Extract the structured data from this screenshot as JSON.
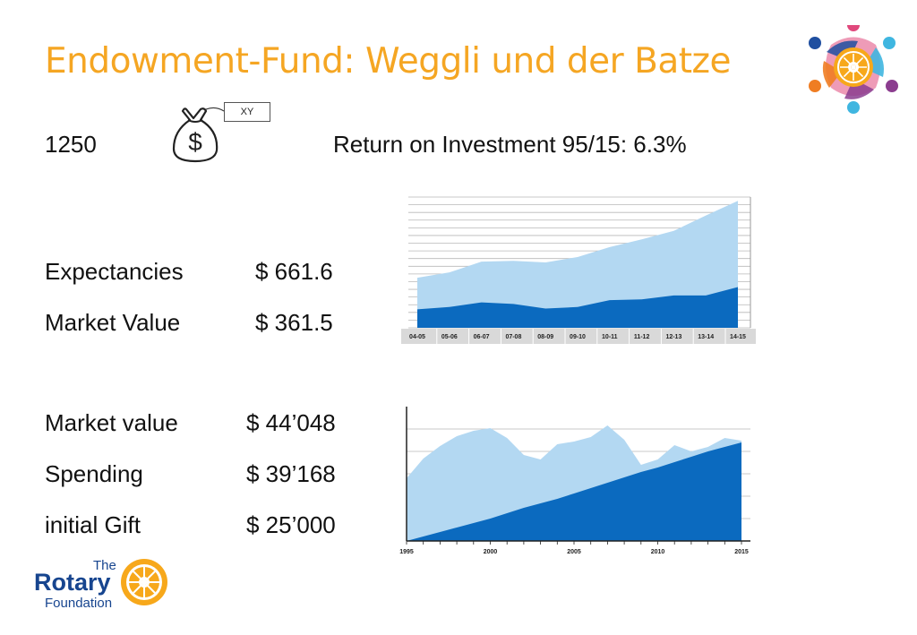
{
  "slide": {
    "title": "Endowment-Fund: Weggli und der Batze",
    "count": "1250",
    "bag_symbol": "$",
    "tag_label": "XY",
    "roi": "Return on Investment 95/15: 6.3%",
    "rows": [
      {
        "label": "Expectancies",
        "value": "$ 661.6"
      },
      {
        "label": "Market Value",
        "value": "$ 361.5"
      },
      {
        "label": "Market value",
        "value": "$ 44’048"
      },
      {
        "label": "Spending",
        "value": "$ 39’168"
      },
      {
        "label": "initial Gift",
        "value": "$ 25’000"
      }
    ]
  },
  "logo": {
    "the": "The",
    "rotary": "Rotary",
    "foundation": "Foundation",
    "brand_blue": "#17458f",
    "brand_gold": "#f7a81b"
  },
  "colors": {
    "title": "#f5a623",
    "light_area": "#b3d8f2",
    "dark_area": "#0b6abf"
  },
  "chart_data": [
    {
      "type": "area",
      "categories": [
        "04-05",
        "05-06",
        "06-07",
        "07-08",
        "08-09",
        "09-10",
        "10-11",
        "11-12",
        "12-13",
        "13-14",
        "14-15"
      ],
      "series": [
        {
          "values": [
            6.5,
            7.2,
            8.6,
            8.7,
            8.5,
            9.2,
            10.5,
            11.5,
            12.6,
            14.6,
            16.5
          ]
        },
        {
          "values": [
            2.4,
            2.7,
            3.3,
            3.1,
            2.5,
            2.7,
            3.6,
            3.7,
            4.2,
            4.2,
            5.3
          ]
        }
      ],
      "ylim": [
        0,
        17
      ],
      "grid": true
    },
    {
      "type": "area",
      "x": [
        1995,
        1996,
        1997,
        1998,
        1999,
        2000,
        2001,
        2002,
        2003,
        2004,
        2005,
        2006,
        2007,
        2008,
        2009,
        2010,
        2011,
        2012,
        2013,
        2014,
        2015
      ],
      "tick_labels": [
        "1995",
        "2000",
        "2005",
        "2010",
        "2015"
      ],
      "series": [
        {
          "values": [
            70,
            92,
            106,
            117,
            123,
            126,
            115,
            96,
            91,
            108,
            111,
            116,
            129,
            113,
            85,
            91,
            107,
            100,
            105,
            115,
            112
          ]
        },
        {
          "values": [
            0,
            5,
            10,
            15,
            20,
            25,
            31,
            37,
            42,
            47,
            53,
            59,
            65,
            71,
            77,
            82,
            88,
            94,
            100,
            105,
            110
          ]
        }
      ],
      "ylim": [
        0,
        150
      ],
      "grid": true
    }
  ]
}
